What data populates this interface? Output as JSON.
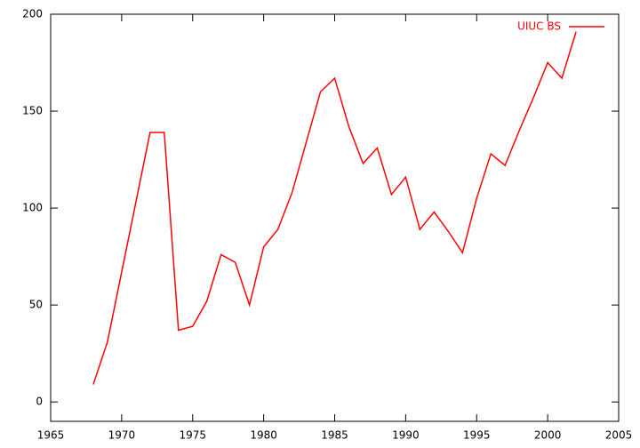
{
  "chart_data": {
    "type": "line",
    "x": [
      1968,
      1969,
      1970,
      1971,
      1972,
      1973,
      1974,
      1975,
      1976,
      1977,
      1978,
      1979,
      1980,
      1981,
      1982,
      1983,
      1984,
      1985,
      1986,
      1987,
      1988,
      1989,
      1990,
      1991,
      1992,
      1993,
      1994,
      1995,
      1996,
      1997,
      1998,
      1999,
      2000,
      2001,
      2002
    ],
    "series": [
      {
        "name": "UIUC BS",
        "color": "#ff0000",
        "values": [
          9,
          31,
          67,
          103,
          139,
          139,
          37,
          39,
          52,
          76,
          72,
          50,
          80,
          89,
          108,
          134,
          160,
          167,
          142,
          123,
          131,
          107,
          116,
          89,
          98,
          88,
          77,
          105,
          128,
          122,
          140,
          157,
          175,
          167,
          191
        ]
      }
    ],
    "xlim": [
      1965,
      2005
    ],
    "xticks": [
      1965,
      1970,
      1975,
      1980,
      1985,
      1990,
      1995,
      2000,
      2005
    ],
    "ylim": [
      -10,
      200
    ],
    "yticks": [
      0,
      50,
      100,
      150,
      200
    ],
    "legend": "top-right"
  }
}
